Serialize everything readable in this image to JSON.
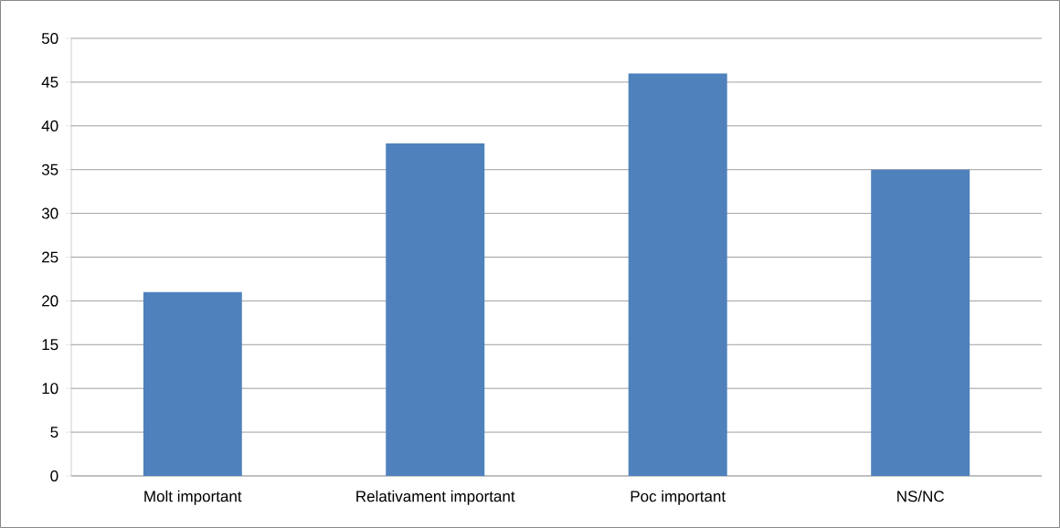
{
  "chart_data": {
    "type": "bar",
    "categories": [
      "Molt important",
      "Relativament important",
      "Poc important",
      "NS/NC"
    ],
    "values": [
      21,
      38,
      46,
      35
    ],
    "color": "#4f81bd",
    "ylim": [
      0,
      50
    ],
    "yticks": [
      0,
      5,
      10,
      15,
      20,
      25,
      30,
      35,
      40,
      45,
      50
    ],
    "grid": "y"
  }
}
